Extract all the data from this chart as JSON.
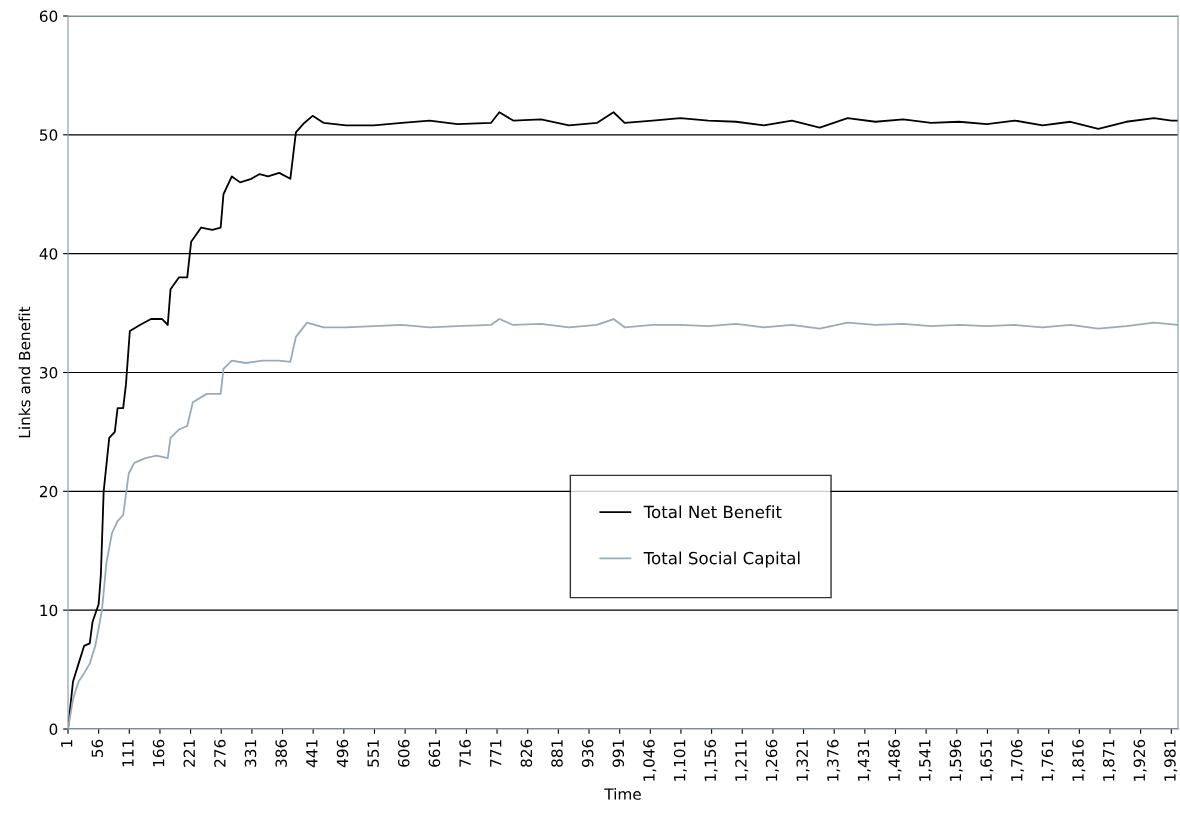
{
  "chart_data": {
    "type": "line",
    "xlabel": "Time",
    "ylabel": "Links and Benefit",
    "xlim": [
      1,
      1993
    ],
    "ylim": [
      0,
      60
    ],
    "yticks": [
      0,
      10,
      20,
      30,
      40,
      50,
      60
    ],
    "xticks": [
      1,
      56,
      111,
      166,
      221,
      276,
      331,
      386,
      441,
      496,
      551,
      606,
      661,
      716,
      771,
      826,
      881,
      936,
      991,
      {
        "value": 1046,
        "label": "1,046"
      },
      {
        "value": 1101,
        "label": "1,101"
      },
      {
        "value": 1156,
        "label": "1,156"
      },
      {
        "value": 1211,
        "label": "1,211"
      },
      {
        "value": 1266,
        "label": "1,266"
      },
      {
        "value": 1321,
        "label": "1,321"
      },
      {
        "value": 1376,
        "label": "1,376"
      },
      {
        "value": 1431,
        "label": "1,431"
      },
      {
        "value": 1486,
        "label": "1,486"
      },
      {
        "value": 1541,
        "label": "1,541"
      },
      {
        "value": 1596,
        "label": "1,596"
      },
      {
        "value": 1651,
        "label": "1,651"
      },
      {
        "value": 1706,
        "label": "1,706"
      },
      {
        "value": 1761,
        "label": "1,761"
      },
      {
        "value": 1816,
        "label": "1,816"
      },
      {
        "value": 1871,
        "label": "1,871"
      },
      {
        "value": 1926,
        "label": "1,926"
      },
      {
        "value": 1981,
        "label": "1,981"
      }
    ],
    "grid": "y",
    "legend": "center",
    "marker": "none",
    "line_style": "solid",
    "series": [
      {
        "name": "Total Net Benefit",
        "color": "#000000",
        "x": [
          1,
          10,
          20,
          30,
          40,
          45,
          56,
          60,
          65,
          75,
          85,
          90,
          100,
          105,
          112,
          130,
          150,
          170,
          180,
          185,
          200,
          215,
          222,
          240,
          260,
          275,
          280,
          295,
          310,
          330,
          345,
          360,
          380,
          400,
          410,
          425,
          440,
          460,
          500,
          550,
          600,
          650,
          700,
          760,
          775,
          800,
          850,
          900,
          950,
          980,
          1000,
          1050,
          1100,
          1150,
          1200,
          1250,
          1300,
          1350,
          1400,
          1450,
          1500,
          1550,
          1600,
          1650,
          1700,
          1750,
          1800,
          1850,
          1900,
          1950,
          1981,
          1993
        ],
        "values": [
          0,
          4,
          5.5,
          7,
          7.2,
          9,
          10.5,
          13,
          20,
          24.5,
          25,
          27,
          27,
          29,
          33.5,
          34,
          34.5,
          34.5,
          34,
          37,
          38,
          38,
          41,
          42.2,
          42,
          42.2,
          45,
          46.5,
          46,
          46.3,
          46.7,
          46.5,
          46.8,
          46.3,
          50.2,
          51,
          51.6,
          51,
          50.8,
          50.8,
          51,
          51.2,
          50.9,
          51,
          51.9,
          51.2,
          51.3,
          50.8,
          51,
          51.9,
          51,
          51.2,
          51.4,
          51.2,
          51.1,
          50.8,
          51.2,
          50.6,
          51.4,
          51.1,
          51.3,
          51,
          51.1,
          50.9,
          51.2,
          50.8,
          51.1,
          50.5,
          51.1,
          51.4,
          51.2,
          51.2
        ]
      },
      {
        "name": "Total Social Capital",
        "color": "#9aabb8",
        "x": [
          1,
          10,
          20,
          30,
          40,
          50,
          56,
          62,
          70,
          80,
          90,
          100,
          110,
          120,
          140,
          160,
          180,
          185,
          200,
          215,
          225,
          250,
          275,
          280,
          295,
          320,
          350,
          380,
          400,
          410,
          430,
          460,
          500,
          550,
          600,
          650,
          700,
          760,
          775,
          800,
          850,
          900,
          950,
          980,
          1000,
          1050,
          1100,
          1150,
          1200,
          1250,
          1300,
          1350,
          1400,
          1450,
          1500,
          1550,
          1600,
          1650,
          1700,
          1750,
          1800,
          1850,
          1900,
          1950,
          1993
        ],
        "values": [
          0,
          2.5,
          4,
          4.7,
          5.5,
          7,
          8.5,
          10,
          14,
          16.5,
          17.5,
          18,
          21.5,
          22.4,
          22.8,
          23,
          22.8,
          24.5,
          25.2,
          25.5,
          27.5,
          28.2,
          28.2,
          30.3,
          31,
          30.8,
          31,
          31,
          30.9,
          33,
          34.2,
          33.8,
          33.8,
          33.9,
          34,
          33.8,
          33.9,
          34,
          34.5,
          34,
          34.1,
          33.8,
          34,
          34.5,
          33.8,
          34,
          34,
          33.9,
          34.1,
          33.8,
          34,
          33.7,
          34.2,
          34,
          34.1,
          33.9,
          34,
          33.9,
          34,
          33.8,
          34,
          33.7,
          33.9,
          34.2,
          34
        ]
      }
    ]
  }
}
